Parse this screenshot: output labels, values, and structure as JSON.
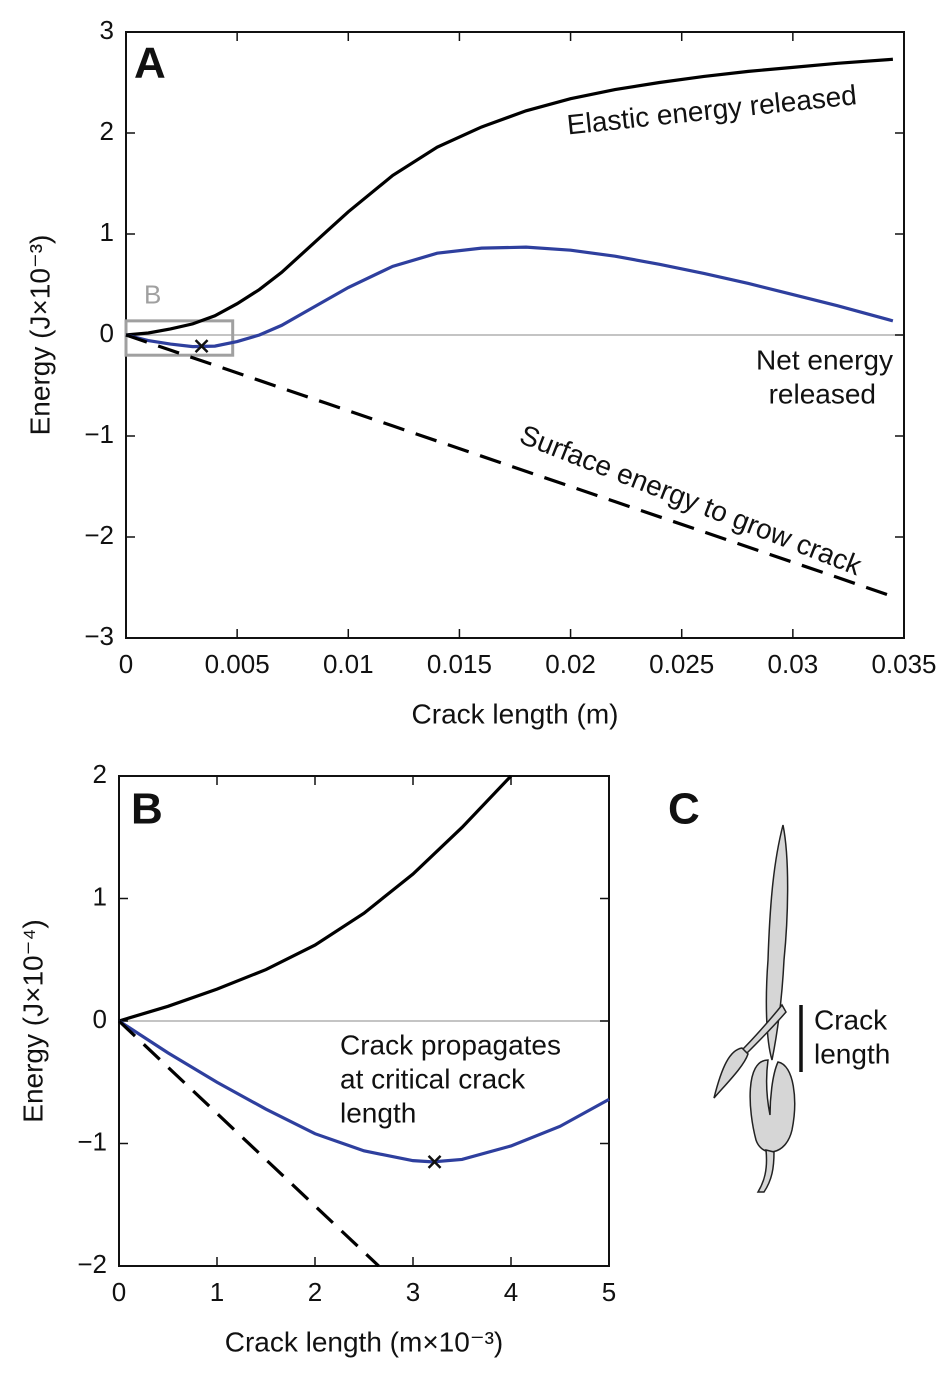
{
  "chart_data": [
    {
      "type": "line",
      "panel": "A",
      "ylabel": "Energy (J×10⁻³)",
      "xlabel": "Crack length (m)",
      "xlim": [
        0,
        0.035
      ],
      "ylim": [
        -3,
        3
      ],
      "xticks": [
        0,
        0.005,
        0.01,
        0.015,
        0.02,
        0.025,
        0.03,
        0.035
      ],
      "yticks": [
        {
          "value": -3,
          "label": "−3"
        },
        {
          "value": -2,
          "label": "−2"
        },
        {
          "value": -1,
          "label": "−1"
        },
        0,
        1,
        2,
        3
      ],
      "zero_line": true,
      "x": [
        0,
        0.001,
        0.002,
        0.003,
        0.004,
        0.005,
        0.006,
        0.007,
        0.008,
        0.009,
        0.01,
        0.012,
        0.014,
        0.016,
        0.018,
        0.02,
        0.022,
        0.024,
        0.026,
        0.028,
        0.03,
        0.032,
        0.0345
      ],
      "series": [
        {
          "label": [
            "Elastic energy released"
          ],
          "color": "#000000",
          "style": "solid",
          "values": [
            0,
            0.02,
            0.06,
            0.11,
            0.19,
            0.31,
            0.45,
            0.62,
            0.82,
            1.02,
            1.22,
            1.58,
            1.86,
            2.06,
            2.22,
            2.34,
            2.43,
            2.5,
            2.56,
            2.61,
            2.65,
            2.69,
            2.73
          ]
        },
        {
          "label": [
            "Net energy",
            "released"
          ],
          "color": "#2e3f9e",
          "style": "solid",
          "values": [
            0,
            -0.055,
            -0.09,
            -0.115,
            -0.11,
            -0.065,
            0,
            0.095,
            0.22,
            0.345,
            0.47,
            0.68,
            0.81,
            0.86,
            0.87,
            0.84,
            0.78,
            0.7,
            0.61,
            0.51,
            0.4,
            0.29,
            0.14
          ]
        },
        {
          "label": [
            "Surface energy to grow crack"
          ],
          "color": "#000000",
          "style": "dashed",
          "values": [
            0,
            -0.075,
            -0.15,
            -0.225,
            -0.3,
            -0.375,
            -0.45,
            -0.525,
            -0.6,
            -0.675,
            -0.75,
            -0.9,
            -1.05,
            -1.2,
            -1.35,
            -1.5,
            -1.65,
            -1.8,
            -1.95,
            -2.1,
            -2.25,
            -2.4,
            -2.59
          ]
        }
      ],
      "marker": {
        "x": 0.0034,
        "y": -0.11
      },
      "zoom_box": {
        "label": "B",
        "color": "#a0a0a0",
        "xlim": [
          0,
          0.0048
        ],
        "ylim": [
          -0.2,
          0.14
        ]
      }
    },
    {
      "type": "line",
      "panel": "B",
      "ylabel": "Energy (J×10⁻⁴)",
      "xlabel": "Crack length (m×10⁻³)",
      "xlim": [
        0,
        5
      ],
      "ylim": [
        -2,
        2
      ],
      "xticks": [
        0,
        1,
        2,
        3,
        4,
        5
      ],
      "yticks": [
        {
          "value": -2,
          "label": "−2"
        },
        {
          "value": -1,
          "label": "−1"
        },
        0,
        1,
        2
      ],
      "zero_line": true,
      "series": [
        {
          "color": "#000000",
          "style": "solid",
          "x": [
            0,
            0.5,
            1,
            1.5,
            2,
            2.5,
            3,
            3.5,
            4
          ],
          "values": [
            0,
            0.12,
            0.26,
            0.42,
            0.62,
            0.88,
            1.2,
            1.58,
            2
          ]
        },
        {
          "color": "#2e3f9e",
          "style": "solid",
          "x": [
            0,
            0.5,
            1,
            1.5,
            2,
            2.5,
            3,
            3.2,
            3.5,
            4,
            4.5,
            5
          ],
          "values": [
            0,
            -0.26,
            -0.5,
            -0.72,
            -0.92,
            -1.06,
            -1.14,
            -1.15,
            -1.13,
            -1.02,
            -0.86,
            -0.64
          ]
        },
        {
          "color": "#000000",
          "style": "dashed",
          "x": [
            0,
            2.65
          ],
          "values": [
            0,
            -2
          ]
        }
      ],
      "marker": {
        "x": 3.22,
        "y": -1.15
      },
      "annotation": [
        "Crack propagates",
        "at critical crack",
        "length"
      ]
    }
  ],
  "panel_c": {
    "label": "C",
    "annotation": [
      "Crack",
      "length"
    ]
  }
}
